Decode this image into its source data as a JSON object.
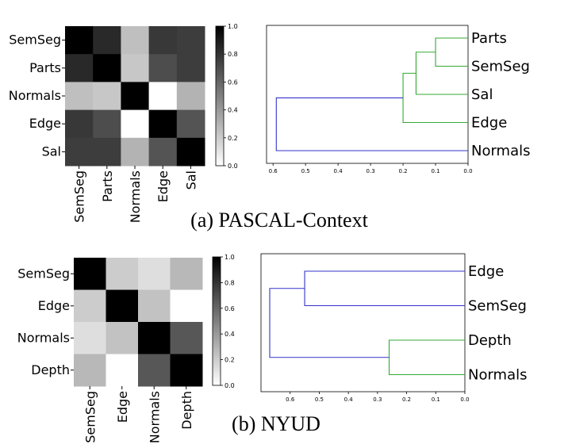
{
  "colors": {
    "high": "#000000",
    "low": "#ffffff",
    "dendro_blue": "#3333cc",
    "dendro_green": "#33aa33"
  },
  "panels": [
    {
      "caption": "(a) PASCAL-Context",
      "heatmap": {
        "type": "heatmap",
        "rows": [
          "SemSeg",
          "Parts",
          "Normals",
          "Edge",
          "Sal"
        ],
        "cols": [
          "SemSeg",
          "Parts",
          "Normals",
          "Edge",
          "Sal"
        ],
        "values": [
          [
            1.0,
            0.84,
            0.25,
            0.78,
            0.76
          ],
          [
            0.84,
            1.0,
            0.22,
            0.7,
            0.76
          ],
          [
            0.25,
            0.22,
            1.0,
            0.0,
            0.3
          ],
          [
            0.78,
            0.7,
            0.0,
            1.0,
            0.67
          ],
          [
            0.76,
            0.76,
            0.3,
            0.67,
            1.0
          ]
        ],
        "colorbar_ticks": [
          "0.0",
          "0.2",
          "0.4",
          "0.6",
          "0.8",
          "1.0"
        ]
      },
      "dendrogram": {
        "type": "dendrogram",
        "leaves": [
          "Parts",
          "SemSeg",
          "Sal",
          "Edge",
          "Normals"
        ],
        "x_ticks": [
          "0.6",
          "0.5",
          "0.4",
          "0.3",
          "0.2",
          "0.1",
          "0.0"
        ],
        "xlim": [
          0.62,
          0.0
        ],
        "merges": [
          {
            "a": 0,
            "b": 1,
            "height": 0.1,
            "color": "dendro_green"
          },
          {
            "a": 2,
            "b": 5,
            "height": 0.16,
            "color": "dendro_green"
          },
          {
            "a": 3,
            "b": 6,
            "height": 0.2,
            "color": "dendro_green"
          },
          {
            "a": 4,
            "b": 7,
            "height": 0.59,
            "color": "dendro_blue"
          }
        ]
      }
    },
    {
      "caption": "(b) NYUD",
      "heatmap": {
        "type": "heatmap",
        "rows": [
          "SemSeg",
          "Edge",
          "Normals",
          "Depth"
        ],
        "cols": [
          "SemSeg",
          "Edge",
          "Normals",
          "Depth"
        ],
        "values": [
          [
            1.0,
            0.2,
            0.13,
            0.28
          ],
          [
            0.2,
            1.0,
            0.24,
            0.0
          ],
          [
            0.13,
            0.24,
            1.0,
            0.66
          ],
          [
            0.28,
            0.0,
            0.66,
            1.0
          ]
        ],
        "colorbar_ticks": [
          "0.0",
          "0.2",
          "0.4",
          "0.6",
          "0.8",
          "1.0"
        ]
      },
      "dendrogram": {
        "type": "dendrogram",
        "leaves": [
          "Edge",
          "SemSeg",
          "Depth",
          "Normals"
        ],
        "x_ticks": [
          "0.6",
          "0.5",
          "0.4",
          "0.3",
          "0.2",
          "0.1",
          "0.0"
        ],
        "xlim": [
          0.7,
          0.0
        ],
        "merges": [
          {
            "a": 0,
            "b": 1,
            "height": 0.55,
            "color": "dendro_blue"
          },
          {
            "a": 2,
            "b": 3,
            "height": 0.26,
            "color": "dendro_green"
          },
          {
            "a": 4,
            "b": 5,
            "height": 0.67,
            "color": "dendro_blue"
          }
        ]
      }
    }
  ]
}
